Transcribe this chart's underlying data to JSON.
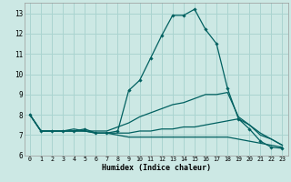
{
  "xlabel": "Humidex (Indice chaleur)",
  "background_color": "#cce8e4",
  "grid_color": "#aad4d0",
  "line_color": "#006060",
  "xlim": [
    -0.5,
    23.5
  ],
  "ylim": [
    6,
    13.5
  ],
  "yticks": [
    6,
    7,
    8,
    9,
    10,
    11,
    12,
    13
  ],
  "xticks": [
    0,
    1,
    2,
    3,
    4,
    5,
    6,
    7,
    8,
    9,
    10,
    11,
    12,
    13,
    14,
    15,
    16,
    17,
    18,
    19,
    20,
    21,
    22,
    23
  ],
  "series": [
    {
      "x": [
        0,
        1,
        2,
        3,
        4,
        5,
        6,
        7,
        8,
        9,
        10,
        11,
        12,
        13,
        14,
        15,
        16,
        17,
        18,
        19,
        20,
        21,
        22,
        23
      ],
      "y": [
        8.0,
        7.2,
        7.2,
        7.2,
        7.2,
        7.3,
        7.1,
        7.1,
        7.2,
        9.2,
        9.7,
        10.8,
        11.9,
        12.9,
        12.9,
        13.2,
        12.2,
        11.5,
        9.3,
        7.8,
        7.3,
        6.7,
        6.4,
        6.35
      ],
      "marker": true
    },
    {
      "x": [
        0,
        1,
        2,
        3,
        4,
        5,
        6,
        7,
        8,
        9,
        10,
        11,
        12,
        13,
        14,
        15,
        16,
        17,
        18,
        19,
        20,
        21,
        22,
        23
      ],
      "y": [
        8.0,
        7.2,
        7.2,
        7.2,
        7.3,
        7.2,
        7.2,
        7.2,
        7.4,
        7.6,
        7.9,
        8.1,
        8.3,
        8.5,
        8.6,
        8.8,
        9.0,
        9.0,
        9.1,
        7.9,
        7.5,
        7.0,
        6.8,
        6.5
      ],
      "marker": false
    },
    {
      "x": [
        0,
        1,
        2,
        3,
        4,
        5,
        6,
        7,
        8,
        9,
        10,
        11,
        12,
        13,
        14,
        15,
        16,
        17,
        18,
        19,
        20,
        21,
        22,
        23
      ],
      "y": [
        8.0,
        7.2,
        7.2,
        7.2,
        7.2,
        7.2,
        7.1,
        7.1,
        7.1,
        7.1,
        7.2,
        7.2,
        7.3,
        7.3,
        7.4,
        7.4,
        7.5,
        7.6,
        7.7,
        7.8,
        7.5,
        7.1,
        6.8,
        6.5
      ],
      "marker": false
    },
    {
      "x": [
        0,
        1,
        2,
        3,
        4,
        5,
        6,
        7,
        8,
        9,
        10,
        11,
        12,
        13,
        14,
        15,
        16,
        17,
        18,
        19,
        20,
        21,
        22,
        23
      ],
      "y": [
        8.0,
        7.2,
        7.2,
        7.2,
        7.2,
        7.2,
        7.1,
        7.1,
        7.0,
        6.9,
        6.9,
        6.9,
        6.9,
        6.9,
        6.9,
        6.9,
        6.9,
        6.9,
        6.9,
        6.8,
        6.7,
        6.6,
        6.5,
        6.4
      ],
      "marker": false
    }
  ]
}
